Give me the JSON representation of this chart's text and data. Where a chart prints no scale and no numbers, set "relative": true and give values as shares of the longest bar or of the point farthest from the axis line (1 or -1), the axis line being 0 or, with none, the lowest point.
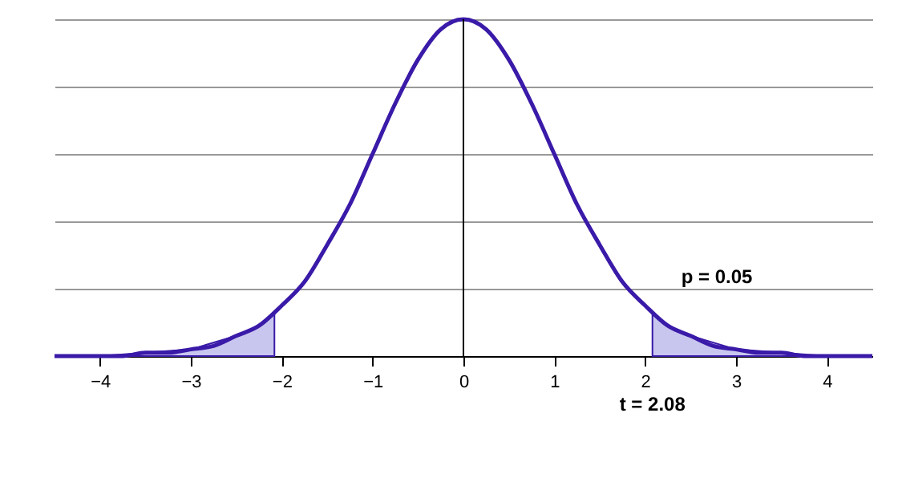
{
  "chart_data": {
    "type": "line",
    "relative": true,
    "grid": "y",
    "marker": "none",
    "line_style": "solid",
    "xlim": [
      -4.5,
      4.5
    ],
    "xticks": [
      -4,
      -3,
      -2,
      -1,
      0,
      1,
      2,
      3,
      4
    ],
    "series": [
      {
        "type": "area",
        "color": "#c8c6ee",
        "x": [
          -4.5,
          -4,
          -3.5,
          -3,
          -2.5,
          -2.25,
          -2.08
        ],
        "values": [
          0,
          0,
          0.01,
          0.02,
          0.06,
          0.09,
          0.13
        ]
      },
      {
        "type": "area",
        "color": "#c8c6ee",
        "x": [
          2.08,
          2.25,
          2.5,
          3,
          3.5,
          4,
          4.5
        ],
        "values": [
          0.13,
          0.09,
          0.06,
          0.02,
          0.01,
          0,
          0
        ]
      },
      {
        "color": "#3a1aa8",
        "x": [
          -4.5,
          -4.25,
          -4,
          -3.75,
          -3.5,
          -3.25,
          -3,
          -2.75,
          -2.5,
          -2.25,
          -2,
          -1.75,
          -1.5,
          -1.25,
          -1,
          -0.75,
          -0.5,
          -0.25,
          0,
          0.25,
          0.5,
          0.75,
          1,
          1.25,
          1.5,
          1.75,
          2,
          2.25,
          2.5,
          2.75,
          3,
          3.25,
          3.5,
          3.75,
          4,
          4.25,
          4.5
        ],
        "values": [
          0,
          0,
          0,
          0,
          0.01,
          0.01,
          0.02,
          0.03,
          0.06,
          0.09,
          0.15,
          0.22,
          0.33,
          0.45,
          0.6,
          0.75,
          0.88,
          0.97,
          1,
          0.97,
          0.88,
          0.75,
          0.6,
          0.45,
          0.33,
          0.22,
          0.15,
          0.09,
          0.06,
          0.03,
          0.02,
          0.01,
          0.01,
          0,
          0,
          0,
          0
        ]
      }
    ],
    "ref_lines": [
      {
        "axis": "x",
        "value": 0,
        "color": "#000000"
      }
    ],
    "annotations": [
      {
        "text": "p = 0.05",
        "x": 2.08,
        "y": 0.13
      },
      {
        "text": "t = 2.08",
        "x": 2.08,
        "y": 0
      }
    ]
  }
}
